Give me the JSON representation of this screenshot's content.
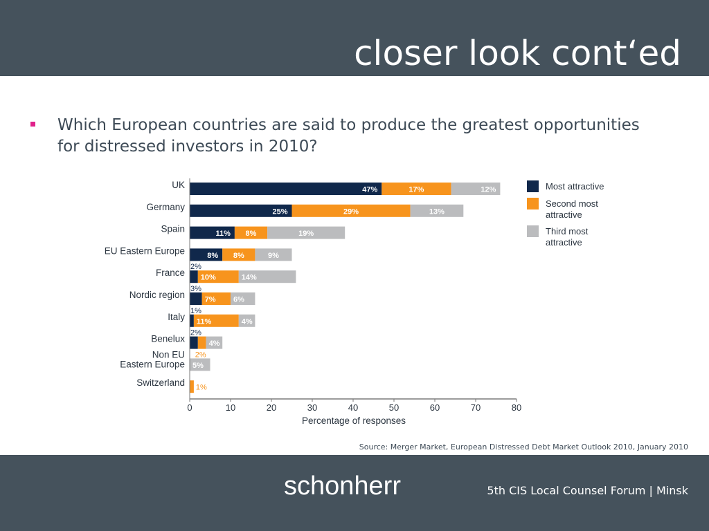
{
  "slide": {
    "title": "closer look cont‘ed",
    "bullet": "Which European countries are said to produce the greatest opportunities for distressed investors in 2010?",
    "source": "Source: Merger Market, European Distressed Debt Market Outlook 2010, January 2010",
    "logo": "schonherr",
    "event": "5th CIS Local Counsel Forum | Minsk"
  },
  "colors": {
    "header_bg": "#45525c",
    "bullet": "#e0218a",
    "most": "#10284b",
    "second": "#f7941d",
    "third": "#bbbcbe"
  },
  "chart_data": {
    "type": "bar",
    "orientation": "horizontal",
    "stacked": true,
    "categories": [
      "UK",
      "Germany",
      "Spain",
      "EU Eastern Europe",
      "France",
      "Nordic region",
      "Italy",
      "Benelux",
      "Non EU Eastern Europe",
      "Switzerland"
    ],
    "category_lines": [
      [
        "UK"
      ],
      [
        "Germany"
      ],
      [
        "Spain"
      ],
      [
        "EU Eastern Europe"
      ],
      [
        "France"
      ],
      [
        "Nordic region"
      ],
      [
        "Italy"
      ],
      [
        "Benelux"
      ],
      [
        "Non EU",
        "Eastern Europe"
      ],
      [
        "Switzerland"
      ]
    ],
    "series": [
      {
        "name": "Most attractive",
        "values": [
          47,
          25,
          11,
          8,
          2,
          3,
          1,
          2,
          0,
          0
        ]
      },
      {
        "name": "Second most attractive",
        "values": [
          17,
          29,
          8,
          8,
          10,
          7,
          11,
          2,
          0,
          1
        ]
      },
      {
        "name": "Third most attractive",
        "values": [
          12,
          13,
          19,
          9,
          14,
          6,
          4,
          4,
          5,
          0
        ]
      }
    ],
    "data_labels": [
      [
        "47%",
        "17%",
        "12%"
      ],
      [
        "25%",
        "29%",
        "13%"
      ],
      [
        "11%",
        "8%",
        "19%"
      ],
      [
        "8%",
        "8%",
        "9%"
      ],
      [
        "2%",
        "10%",
        "14%"
      ],
      [
        "3%",
        "7%",
        "6%"
      ],
      [
        "1%",
        "11%",
        "4%"
      ],
      [
        "2%",
        "2%",
        "4%"
      ],
      [
        "",
        "",
        "5%"
      ],
      [
        "",
        "1%",
        ""
      ]
    ],
    "legend": [
      {
        "lines": [
          "Most attractive"
        ]
      },
      {
        "lines": [
          "Second most",
          "attractive"
        ]
      },
      {
        "lines": [
          "Third most",
          "attractive"
        ]
      }
    ],
    "legend_position": "right",
    "xlabel": "Percentage of responses",
    "ylabel": "",
    "xlim": [
      0,
      80
    ],
    "xticks": [
      0,
      10,
      20,
      30,
      40,
      50,
      60,
      70,
      80
    ],
    "grid": false
  }
}
